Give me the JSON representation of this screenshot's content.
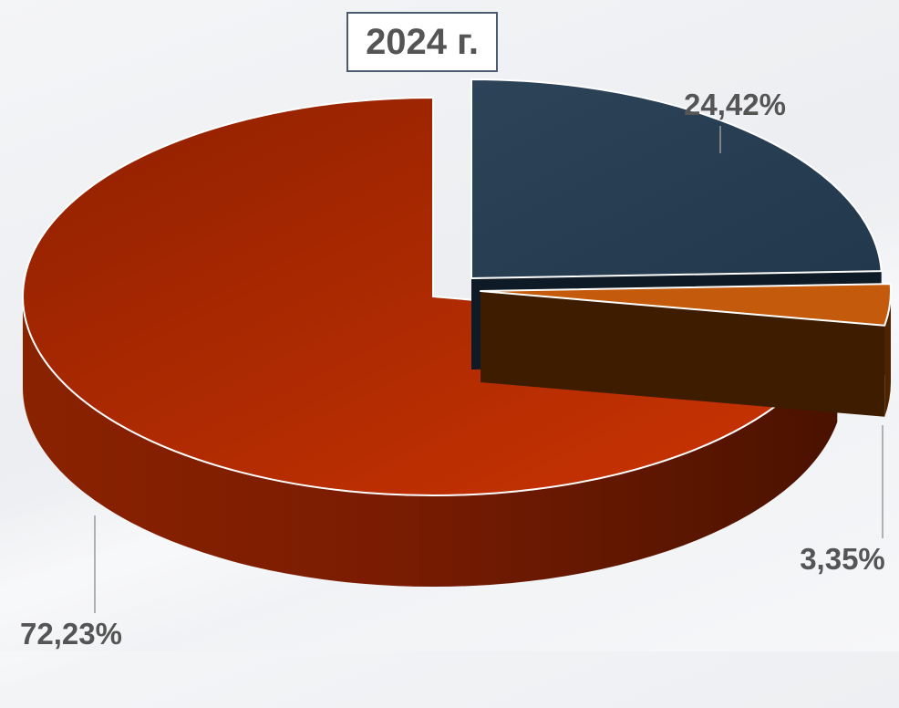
{
  "chart_data": {
    "type": "pie",
    "title": "2024 г.",
    "three_d": true,
    "exploded": true,
    "slices": [
      {
        "label": "24,42%",
        "value": 24.42,
        "color": "#2b3f52"
      },
      {
        "label": "3,35%",
        "value": 3.35,
        "color": "#c45a0c"
      },
      {
        "label": "72,23%",
        "value": 72.23,
        "color": "#b42a06"
      }
    ]
  }
}
